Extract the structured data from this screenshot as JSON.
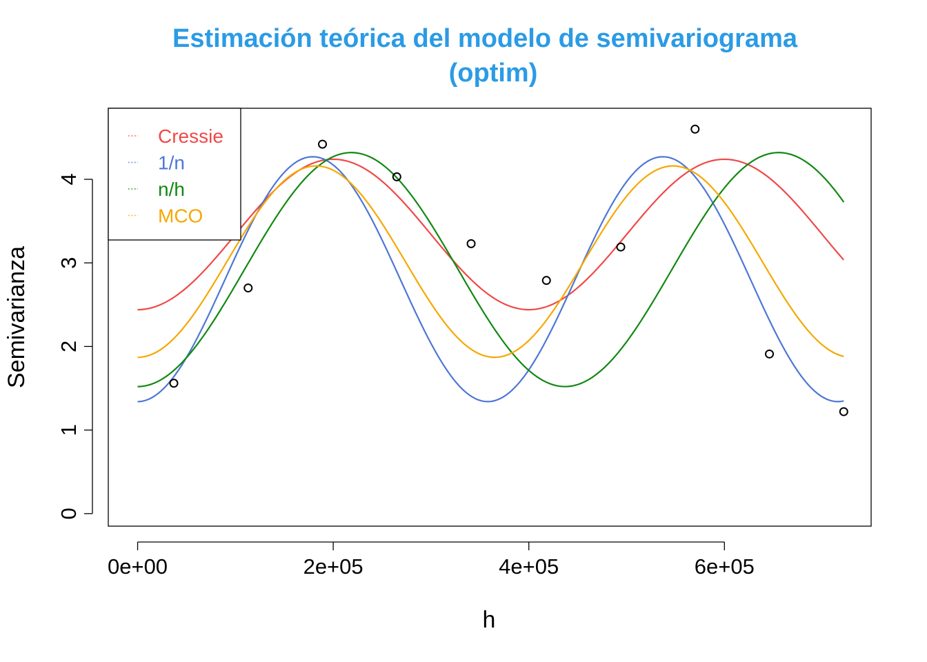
{
  "chart_data": {
    "type": "line",
    "title": "Estimación teórica del modelo de semivariograma",
    "subtitle": "(optim)",
    "xlabel": "h",
    "ylabel": "Semivarianza",
    "xlim": [
      -30000,
      750000
    ],
    "ylim": [
      -0.15,
      4.85
    ],
    "x_ticks": [
      0,
      200000,
      400000,
      600000
    ],
    "x_tick_labels": [
      "0e+00",
      "2e+05",
      "4e+05",
      "6e+05"
    ],
    "y_ticks": [
      0,
      1,
      2,
      3,
      4
    ],
    "y_tick_labels": [
      "0",
      "1",
      "2",
      "3",
      "4"
    ],
    "grid": false,
    "legend_position": "top-left",
    "points": {
      "x": [
        37000,
        113000,
        189000,
        265000,
        341000,
        418000,
        494000,
        570000,
        646000,
        722000
      ],
      "y": [
        1.56,
        2.7,
        4.42,
        4.03,
        3.23,
        2.79,
        3.19,
        4.6,
        1.91,
        1.22
      ]
    },
    "series": [
      {
        "name": "Cressie",
        "color": "#f04848",
        "x_end": 722000,
        "nugget": 2.44,
        "sill": 1.8,
        "period": 400000
      },
      {
        "name": "1/n",
        "color": "#4d76d6",
        "x_end": 722000,
        "nugget": 1.34,
        "sill": 2.93,
        "period": 358000
      },
      {
        "name": "n/h",
        "color": "#118811",
        "x_end": 722000,
        "nugget": 1.52,
        "sill": 2.8,
        "period": 437000
      },
      {
        "name": "MCO",
        "color": "#f5a800",
        "x_end": 722000,
        "nugget": 1.87,
        "sill": 2.29,
        "period": 365000
      }
    ]
  }
}
